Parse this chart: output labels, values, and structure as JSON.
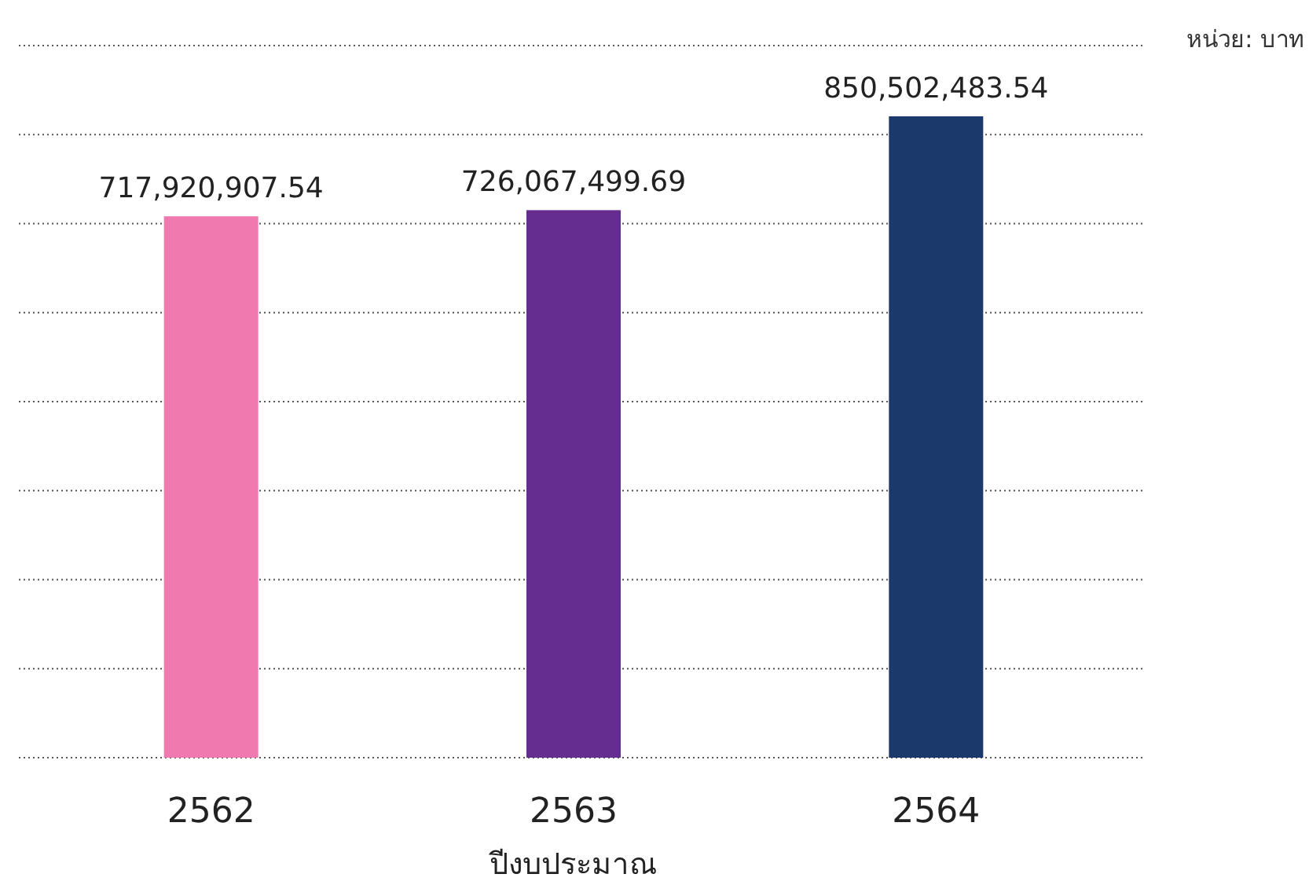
{
  "chart_data": {
    "type": "bar",
    "xlabel": "ปีงบประมาณ",
    "annotations": [
      "หน่วย: บาท"
    ],
    "categories": [
      "2562",
      "2563",
      "2564"
    ],
    "values": [
      717920907.54,
      726067499.69,
      850502483.54
    ],
    "value_labels": [
      "717,920,907.54",
      "726,067,499.69",
      "850,502,483.54"
    ],
    "colors": [
      "#f07aaf",
      "#662d91",
      "#1b3a6b"
    ],
    "grid": "y",
    "tick_labels": "x"
  }
}
